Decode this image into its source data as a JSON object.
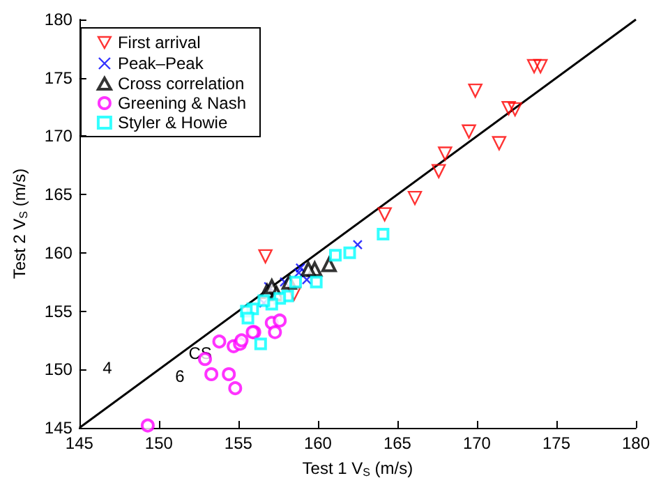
{
  "chart_data": {
    "type": "scatter",
    "xlabel": "Test 1 V$_{S}$ (m/s)",
    "ylabel": "Test 2 V$_{S}$ (m/s)",
    "xlim": [
      145,
      180
    ],
    "xticks": [
      145,
      150,
      155,
      160,
      165,
      170,
      175,
      180
    ],
    "ylim": [
      145,
      180
    ],
    "yticks": [
      145,
      150,
      155,
      160,
      165,
      170,
      175,
      180
    ],
    "grid": false,
    "legend": "top left",
    "series": [
      {
        "name": "First arrival",
        "color": "#ff0000",
        "marker": "triangle-down",
        "x": [
          173.6,
          174.0,
          169.9,
          172.0,
          172.4,
          169.5,
          171.4,
          168.0,
          167.6,
          166.1,
          164.2,
          156.7,
          158.5
        ],
        "values": [
          176.0,
          176.0,
          173.9,
          172.4,
          172.3,
          170.4,
          169.4,
          168.5,
          167.0,
          164.7,
          163.3,
          159.7,
          156.5
        ]
      },
      {
        "name": "Peak–Peak",
        "color": "#0000ff",
        "marker": "cross",
        "x": [
          162.5,
          156.6,
          156.9,
          157.2,
          157.9,
          158.8,
          158.9,
          159.3
        ],
        "values": [
          160.7,
          155.7,
          157.1,
          null,
          157.5,
          158.3,
          158.7,
          157.7
        ]
      },
      {
        "name": "Cross correlation",
        "color": "#000000",
        "marker": "triangle",
        "x": [
          160.7,
          159.8,
          159.4,
          156.8,
          157.1,
          157.8,
          158.2,
          157.4
        ],
        "values": [
          159.0,
          158.6,
          158.6,
          156.7,
          157.1,
          null,
          157.5,
          156.5
        ]
      },
      {
        "name": "Greening & Nash",
        "color": "#ff00ff",
        "marker": "circle",
        "x": [
          157.1,
          157.6,
          157.3,
          156.0,
          153.8,
          154.7,
          155.1,
          153.3,
          154.4,
          154.8,
          152.9,
          149.3,
          155.2,
          155.9
        ],
        "values": [
          154.0,
          154.2,
          153.2,
          153.2,
          152.4,
          152.0,
          152.2,
          149.6,
          149.6,
          148.4,
          150.9,
          145.2,
          152.5,
          153.2
        ]
      },
      {
        "name": "Styler & Howie",
        "color": "#00ffff",
        "marker": "square",
        "x": [
          164.1,
          161.1,
          162.0,
          159.9,
          158.6,
          158.1,
          157.6,
          157.1,
          156.6,
          155.9,
          155.5,
          155.6,
          156.4
        ],
        "values": [
          161.6,
          159.8,
          160.0,
          157.5,
          157.5,
          156.3,
          156.1,
          155.6,
          155.9,
          155.2,
          155.0,
          154.4,
          152.2
        ]
      },
      {
        "type": "line",
        "color": "#000000",
        "marker": "none",
        "line_style": "solid",
        "x": [
          145,
          180
        ],
        "values": [
          145,
          180
        ]
      }
    ],
    "annotations": [
      {
        "text": "CS",
        "x": 152.6,
        "y": 151.4
      },
      "6",
      "4"
    ]
  }
}
